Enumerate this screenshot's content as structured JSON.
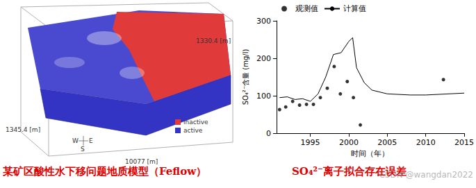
{
  "chart_data": {
    "type": "line",
    "x_label": "时间（年）",
    "y_label": "SO₄²⁻含量 (mg/l)",
    "xlim": [
      1990.6,
      2015
    ],
    "xticks": [
      1995,
      2000,
      2005,
      2010,
      2015
    ],
    "ylim": [
      0,
      300
    ],
    "yticks": [
      0,
      100,
      200,
      300
    ],
    "grid": false,
    "legend": "top",
    "series": [
      {
        "name": "观测值",
        "type": "scatter",
        "marker": "circle",
        "color": "#000000",
        "x": [
          1991.0,
          1991.8,
          1992.7,
          1993.6,
          1994.5,
          1995.4,
          1996.3,
          1997.2,
          1998.1,
          1998.9,
          1999.8,
          2000.6,
          2001.5,
          2012.3
        ],
        "values": [
          63,
          70,
          85,
          75,
          77,
          77,
          95,
          120,
          178,
          105,
          138,
          95,
          22,
          143
        ]
      },
      {
        "name": "计算值",
        "type": "line",
        "line_style": "solid",
        "color": "#000000",
        "x": [
          1991,
          1992,
          1993,
          1994,
          1995,
          1996,
          1997,
          1998,
          1999,
          2000,
          2000.5,
          2001,
          2002,
          2003,
          2005,
          2008,
          2010,
          2015
        ],
        "values": [
          95,
          97,
          90,
          92,
          85,
          105,
          150,
          210,
          215,
          245,
          255,
          175,
          135,
          115,
          105,
          102,
          102,
          107
        ]
      }
    ]
  },
  "figure": {
    "dimension_labels": [
      "1330.4 [m]",
      "1345.4 [m]",
      "10077 [m]"
    ],
    "compass": [
      "W",
      "S",
      "E"
    ],
    "model_legend": [
      {
        "label": "inactive",
        "color": "#e03a3a"
      },
      {
        "label": "active",
        "color": "#3434c4"
      }
    ],
    "captions": [
      "某矿区酸性水下移问题地质模型（Feflow）",
      "SO₄²⁻离子拟合存在误差"
    ],
    "watermark": "CSDN @wangdan2022"
  }
}
